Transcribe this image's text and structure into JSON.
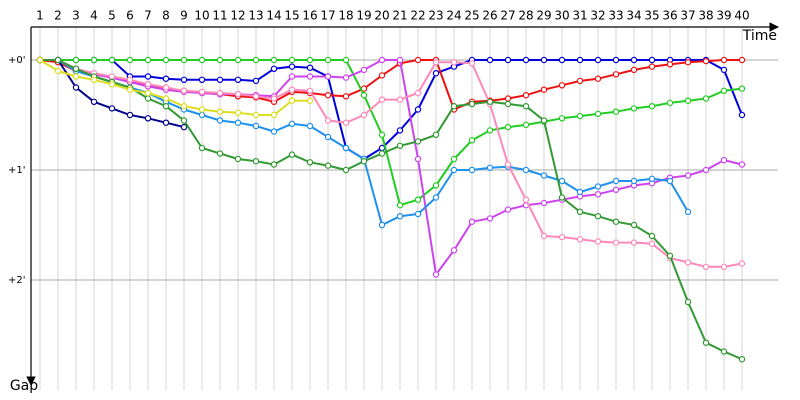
{
  "chart_data": {
    "type": "line",
    "x_label": "Time",
    "y_label": "Gap",
    "x": [
      1,
      2,
      3,
      4,
      5,
      6,
      7,
      8,
      9,
      10,
      11,
      12,
      13,
      14,
      15,
      16,
      17,
      18,
      19,
      20,
      21,
      22,
      23,
      24,
      25,
      26,
      27,
      28,
      29,
      30,
      31,
      32,
      33,
      34,
      35,
      36,
      37,
      38,
      39,
      40
    ],
    "xlim": [
      0.5,
      42
    ],
    "xticks": [
      1,
      2,
      3,
      4,
      5,
      6,
      7,
      8,
      9,
      10,
      11,
      12,
      13,
      14,
      15,
      16,
      17,
      18,
      19,
      20,
      21,
      22,
      23,
      24,
      25,
      26,
      27,
      28,
      29,
      30,
      31,
      32,
      33,
      34,
      35,
      36,
      37,
      38,
      39,
      40
    ],
    "ylim": [
      -0.3,
      3.0
    ],
    "yticks": [
      {
        "value": 0,
        "label": "+0'"
      },
      {
        "value": 1,
        "label": "+1'"
      },
      {
        "value": 2,
        "label": "+2'"
      }
    ],
    "grid": true,
    "markers": true,
    "series": [
      {
        "color": "#0000dd",
        "values": [
          0,
          0,
          0,
          0,
          0,
          0.15,
          0.15,
          0.17,
          0.18,
          0.18,
          0.18,
          0.18,
          0.19,
          0.08,
          0.06,
          0.07,
          0.15,
          0.8,
          0.9,
          0.8,
          0.64,
          0.45,
          0.12,
          0.06,
          0,
          0,
          0,
          0,
          0,
          0,
          0,
          0,
          0,
          0,
          0,
          0,
          0,
          0,
          0.09,
          0.5
        ]
      },
      {
        "color": "#ee1111",
        "values": [
          0,
          0.02,
          0.1,
          0.13,
          0.16,
          0.2,
          0.23,
          0.26,
          0.28,
          0.3,
          0.31,
          0.33,
          0.34,
          0.38,
          0.29,
          0.3,
          0.32,
          0.33,
          0.26,
          0.14,
          0.03,
          0,
          0,
          0.45,
          0.38,
          0.37,
          0.35,
          0.32,
          0.27,
          0.23,
          0.19,
          0.17,
          0.13,
          0.09,
          0.06,
          0.04,
          0.02,
          0.01,
          0,
          0
        ]
      },
      {
        "color": "#22cc22",
        "values": [
          0,
          0,
          0,
          0,
          0,
          0,
          0,
          0,
          0,
          0,
          0,
          0,
          0,
          0,
          0,
          0,
          0,
          0,
          0.32,
          0.68,
          1.32,
          1.27,
          1.14,
          0.9,
          0.73,
          0.64,
          0.61,
          0.59,
          0.56,
          0.53,
          0.51,
          0.49,
          0.47,
          0.44,
          0.42,
          0.39,
          0.37,
          0.35,
          0.28,
          0.26
        ]
      },
      {
        "color": "#cc44ee",
        "values": [
          0,
          0,
          0.1,
          0.13,
          0.16,
          0.2,
          0.24,
          0.27,
          0.29,
          0.3,
          0.31,
          0.31,
          0.32,
          0.33,
          0.15,
          0.15,
          0.15,
          0.16,
          0.09,
          0,
          0,
          0.9,
          1.95,
          1.73,
          1.47,
          1.44,
          1.36,
          1.32,
          1.3,
          1.27,
          1.24,
          1.22,
          1.18,
          1.14,
          1.12,
          1.07,
          1.05,
          1,
          0.91,
          0.95
        ]
      },
      {
        "color": "#000088",
        "values": [
          0,
          0,
          0.25,
          0.38,
          0.44,
          0.5,
          0.53,
          0.57,
          0.61,
          null,
          null,
          null,
          null,
          null,
          null,
          null,
          null,
          null,
          null,
          null,
          null,
          null,
          null,
          null,
          null,
          null,
          null,
          null,
          null,
          null,
          null,
          null,
          null,
          null,
          null,
          null,
          null,
          null,
          null,
          null
        ]
      },
      {
        "color": "#1e90ee",
        "values": [
          0,
          0,
          0.1,
          0.15,
          0.2,
          0.25,
          0.3,
          0.38,
          0.45,
          0.5,
          0.55,
          0.57,
          0.6,
          0.65,
          0.58,
          0.6,
          0.7,
          0.8,
          0.9,
          1.5,
          1.42,
          1.4,
          1.25,
          1.0,
          1.0,
          0.98,
          0.97,
          1.0,
          1.05,
          1.1,
          1.2,
          1.15,
          1.1,
          1.1,
          1.08,
          1.1,
          1.38,
          null,
          null,
          null
        ]
      },
      {
        "color": "#ff88bb",
        "values": [
          0,
          0,
          0.08,
          0.12,
          0.15,
          0.18,
          0.22,
          0.25,
          0.28,
          0.29,
          0.3,
          0.31,
          0.33,
          0.35,
          0.27,
          0.28,
          0.55,
          0.57,
          0.5,
          0.36,
          0.36,
          0.3,
          0.02,
          0.02,
          0.03,
          0.4,
          0.95,
          1.27,
          1.6,
          1.61,
          1.63,
          1.65,
          1.66,
          1.66,
          1.67,
          1.8,
          1.84,
          1.88,
          1.88,
          1.85
        ]
      },
      {
        "color": "#339933",
        "values": [
          0,
          0,
          0.08,
          0.15,
          0.2,
          0.25,
          0.35,
          0.42,
          0.55,
          0.8,
          0.85,
          0.9,
          0.92,
          0.95,
          0.86,
          0.93,
          0.96,
          1.0,
          0.92,
          0.85,
          0.78,
          0.74,
          0.68,
          0.42,
          0.4,
          0.38,
          0.4,
          0.42,
          0.55,
          1.25,
          1.38,
          1.42,
          1.47,
          1.5,
          1.6,
          1.78,
          2.2,
          2.57,
          2.65,
          2.72
        ]
      },
      {
        "color": "#dddd22",
        "values": [
          0,
          0.1,
          0.15,
          0.18,
          0.22,
          0.27,
          0.3,
          0.35,
          0.42,
          0.45,
          0.47,
          0.48,
          0.5,
          0.5,
          0.37,
          0.37,
          null,
          null,
          null,
          null,
          null,
          null,
          null,
          null,
          null,
          null,
          null,
          null,
          null,
          null,
          null,
          null,
          null,
          null,
          null,
          null,
          null,
          null,
          null,
          null
        ]
      }
    ]
  }
}
